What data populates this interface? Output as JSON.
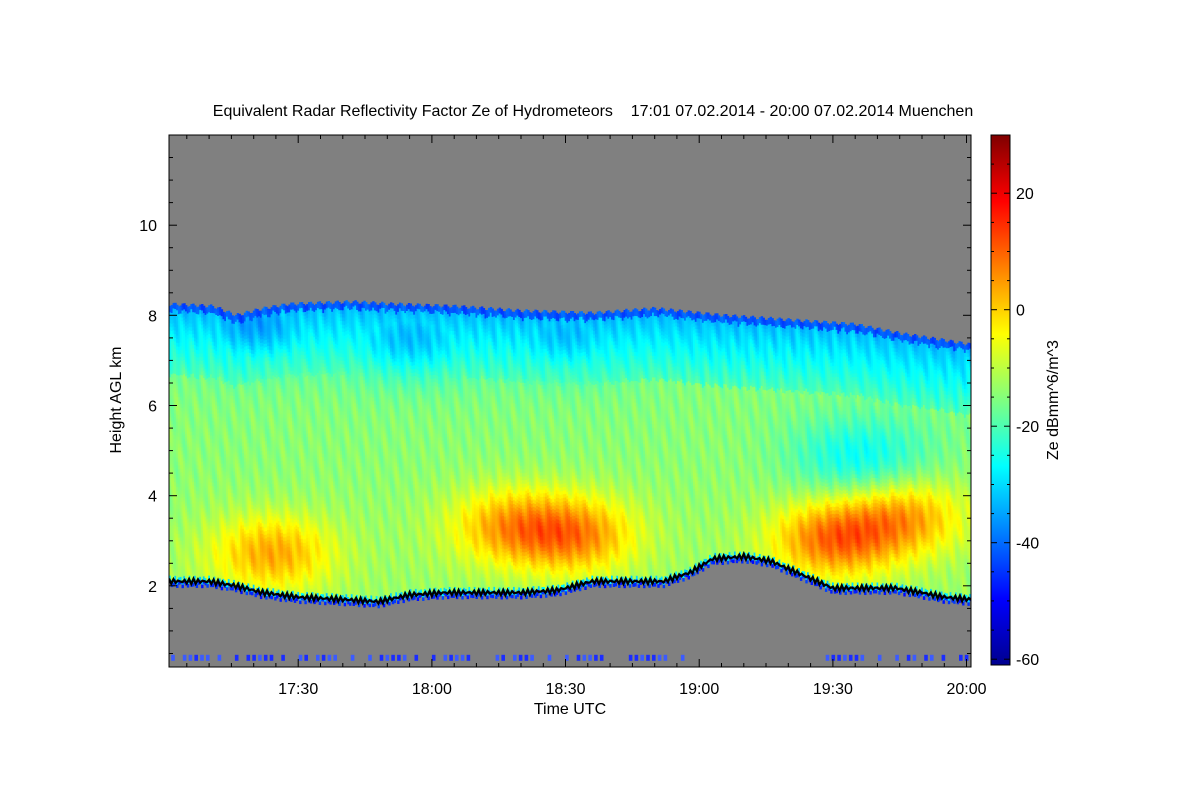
{
  "chart_data": {
    "type": "heatmap",
    "title": "Equivalent Radar Reflectivity Factor Ze of Hydrometeors    17:01 07.02.2014 - 20:00 07.02.2014 Muenchen",
    "xlabel": "Time UTC",
    "ylabel": "Height AGL km",
    "x_unit": "minutes UTC",
    "xlim": [
      1021,
      1201
    ],
    "ylim": [
      0.2,
      12
    ],
    "x_ticks": [
      {
        "value": 1050,
        "label": "17:30"
      },
      {
        "value": 1080,
        "label": "18:00"
      },
      {
        "value": 1110,
        "label": "18:30"
      },
      {
        "value": 1140,
        "label": "19:00"
      },
      {
        "value": 1170,
        "label": "19:30"
      },
      {
        "value": 1200,
        "label": "20:00"
      }
    ],
    "y_ticks": [
      {
        "value": 2,
        "label": "2"
      },
      {
        "value": 4,
        "label": "4"
      },
      {
        "value": 6,
        "label": "6"
      },
      {
        "value": 8,
        "label": "8"
      },
      {
        "value": 10,
        "label": "10"
      }
    ],
    "colorbar": {
      "label": "Ze dBmm^6/m^3",
      "range": [
        -61,
        30
      ],
      "ticks": [
        {
          "value": -60,
          "label": "-60"
        },
        {
          "value": -40,
          "label": "-40"
        },
        {
          "value": -20,
          "label": "-20"
        },
        {
          "value": 0,
          "label": "0"
        },
        {
          "value": 20,
          "label": "20"
        }
      ]
    },
    "no_signal_color": "#808080",
    "cloud_top_km": [
      [
        1021,
        8.25
      ],
      [
        1031,
        8.2
      ],
      [
        1036,
        8.0
      ],
      [
        1042,
        8.15
      ],
      [
        1048,
        8.25
      ],
      [
        1062,
        8.3
      ],
      [
        1071,
        8.25
      ],
      [
        1085,
        8.2
      ],
      [
        1100,
        8.1
      ],
      [
        1116,
        8.05
      ],
      [
        1130,
        8.15
      ],
      [
        1145,
        8.0
      ],
      [
        1160,
        7.9
      ],
      [
        1175,
        7.8
      ],
      [
        1185,
        7.6
      ],
      [
        1201,
        7.35
      ]
    ],
    "cloud_base_km": [
      [
        1021,
        2.05
      ],
      [
        1030,
        2.05
      ],
      [
        1036,
        1.95
      ],
      [
        1042,
        1.8
      ],
      [
        1050,
        1.7
      ],
      [
        1060,
        1.65
      ],
      [
        1068,
        1.6
      ],
      [
        1075,
        1.75
      ],
      [
        1083,
        1.8
      ],
      [
        1090,
        1.8
      ],
      [
        1100,
        1.8
      ],
      [
        1108,
        1.85
      ],
      [
        1116,
        2.05
      ],
      [
        1124,
        2.05
      ],
      [
        1132,
        2.05
      ],
      [
        1138,
        2.25
      ],
      [
        1143,
        2.55
      ],
      [
        1150,
        2.6
      ],
      [
        1156,
        2.5
      ],
      [
        1163,
        2.2
      ],
      [
        1170,
        1.9
      ],
      [
        1177,
        1.9
      ],
      [
        1184,
        1.9
      ],
      [
        1190,
        1.8
      ],
      [
        1195,
        1.7
      ],
      [
        1201,
        1.65
      ]
    ],
    "reflectivity_maxima": [
      {
        "x": 1044,
        "y": 2.7,
        "ze_dbz": 5
      },
      {
        "x": 1097,
        "y": 3.3,
        "ze_dbz": 4
      },
      {
        "x": 1112,
        "y": 3.1,
        "ze_dbz": 7
      },
      {
        "x": 1170,
        "y": 3.0,
        "ze_dbz": 10
      },
      {
        "x": 1186,
        "y": 3.5,
        "ze_dbz": 5
      }
    ],
    "reflectivity_minima": [
      {
        "x": 1040,
        "y": 7.8,
        "ze_dbz": -30
      },
      {
        "x": 1075,
        "y": 7.5,
        "ze_dbz": -27
      },
      {
        "x": 1110,
        "y": 7.6,
        "ze_dbz": -27
      },
      {
        "x": 1176,
        "y": 4.8,
        "ze_dbz": -22
      }
    ]
  }
}
